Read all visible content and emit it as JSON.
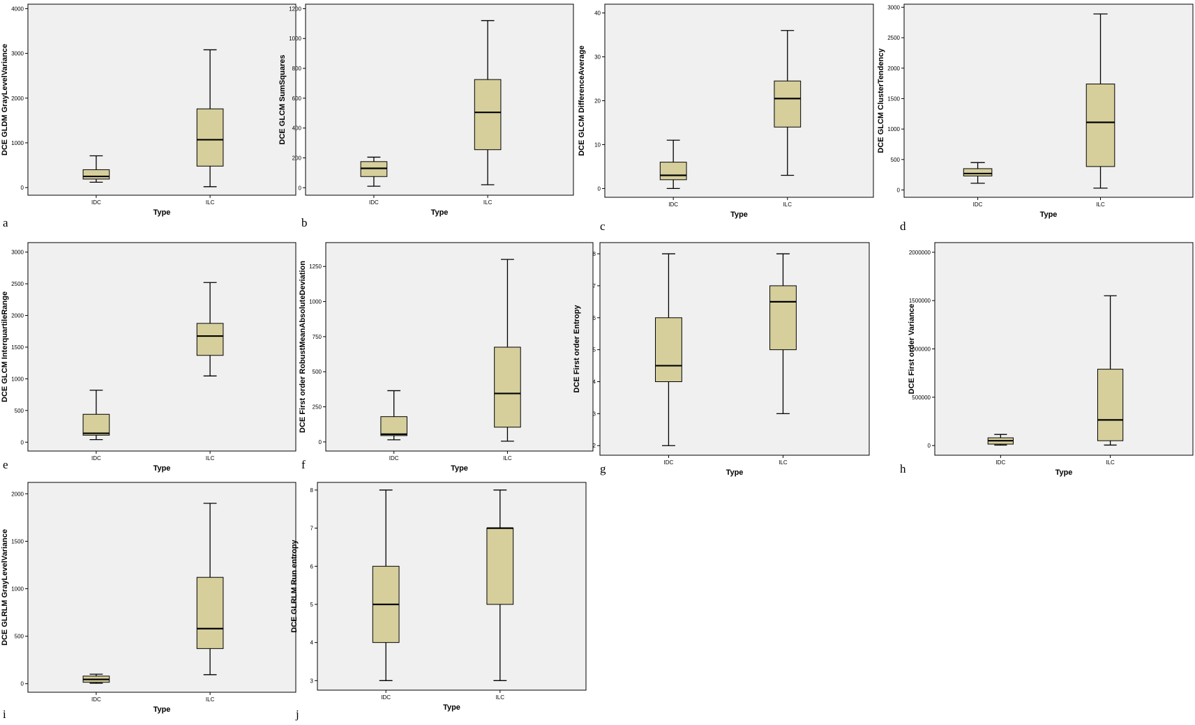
{
  "figure": {
    "colors": {
      "plot_bg": "#f0f0f0",
      "box_fill": "#d6cf9c",
      "stroke": "#000000"
    }
  },
  "chart_data": [
    {
      "type": "boxplot",
      "panel": "a",
      "xlabel": "Type",
      "ylabel": "DCE GLDM GrayLevelVariance",
      "ylim": [
        -170,
        4100
      ],
      "yticks": [
        0,
        1000,
        2000,
        3000,
        4000
      ],
      "categories": [
        "IDC",
        "ILC"
      ],
      "boxes": [
        {
          "category": "IDC",
          "min": 120,
          "q1": 190,
          "median": 250,
          "q3": 400,
          "max": 710
        },
        {
          "category": "ILC",
          "min": 20,
          "q1": 480,
          "median": 1070,
          "q3": 1760,
          "max": 3080
        }
      ]
    },
    {
      "type": "boxplot",
      "panel": "b",
      "xlabel": "Type",
      "ylabel": "DCE GLCM SumSquares",
      "ylim": [
        -50,
        1230
      ],
      "yticks": [
        0,
        200,
        400,
        600,
        800,
        1000,
        1200
      ],
      "categories": [
        "IDC",
        "ILC"
      ],
      "boxes": [
        {
          "category": "IDC",
          "min": 10,
          "q1": 75,
          "median": 130,
          "q3": 175,
          "max": 205
        },
        {
          "category": "ILC",
          "min": 20,
          "q1": 255,
          "median": 505,
          "q3": 725,
          "max": 1120
        }
      ]
    },
    {
      "type": "boxplot",
      "panel": "c",
      "xlabel": "Type",
      "ylabel": "DCE GLCM DifferenceAverage",
      "ylim": [
        -2,
        42
      ],
      "yticks": [
        0,
        10,
        20,
        30,
        40
      ],
      "categories": [
        "IDC",
        "ILC"
      ],
      "boxes": [
        {
          "category": "IDC",
          "min": 0,
          "q1": 2,
          "median": 3,
          "q3": 6,
          "max": 11
        },
        {
          "category": "ILC",
          "min": 3,
          "q1": 14,
          "median": 20.5,
          "q3": 24.5,
          "max": 36
        }
      ]
    },
    {
      "type": "boxplot",
      "panel": "d",
      "xlabel": "Type",
      "ylabel": "DCE GLCM ClusterTendency",
      "ylim": [
        -120,
        3050
      ],
      "yticks": [
        0,
        500,
        1000,
        1500,
        2000,
        2500,
        3000
      ],
      "categories": [
        "IDC",
        "ILC"
      ],
      "boxes": [
        {
          "category": "IDC",
          "min": 110,
          "q1": 230,
          "median": 270,
          "q3": 350,
          "max": 450
        },
        {
          "category": "ILC",
          "min": 30,
          "q1": 385,
          "median": 1110,
          "q3": 1740,
          "max": 2890
        }
      ]
    },
    {
      "type": "boxplot",
      "panel": "e",
      "xlabel": "Type",
      "ylabel": "DCE GLCM InterquartileRange",
      "ylim": [
        -140,
        3150
      ],
      "yticks": [
        0,
        500,
        1000,
        1500,
        2000,
        2500,
        3000
      ],
      "categories": [
        "IDC",
        "ILC"
      ],
      "boxes": [
        {
          "category": "IDC",
          "min": 40,
          "q1": 110,
          "median": 140,
          "q3": 440,
          "max": 820
        },
        {
          "category": "ILC",
          "min": 1045,
          "q1": 1370,
          "median": 1675,
          "q3": 1875,
          "max": 2520
        }
      ]
    },
    {
      "type": "boxplot",
      "panel": "f",
      "xlabel": "Type",
      "ylabel": "DCE First order RobustMeanAbsoluteDeviation",
      "ylim": [
        -65,
        1420
      ],
      "yticks": [
        0,
        250,
        500,
        750,
        1000,
        1250
      ],
      "categories": [
        "IDC",
        "ILC"
      ],
      "boxes": [
        {
          "category": "IDC",
          "min": 15,
          "q1": 45,
          "median": 55,
          "q3": 180,
          "max": 365
        },
        {
          "category": "ILC",
          "min": 5,
          "q1": 105,
          "median": 345,
          "q3": 675,
          "max": 1300
        }
      ]
    },
    {
      "type": "boxplot",
      "panel": "g",
      "xlabel": "Type",
      "ylabel": "DCE First order Entropy",
      "ylim": [
        1.7,
        8.35
      ],
      "yticks": [
        2,
        3,
        4,
        5,
        6,
        7,
        8
      ],
      "categories": [
        "IDC",
        "ILC"
      ],
      "boxes": [
        {
          "category": "IDC",
          "min": 2,
          "q1": 4,
          "median": 4.5,
          "q3": 6,
          "max": 8
        },
        {
          "category": "ILC",
          "min": 3,
          "q1": 5,
          "median": 6.5,
          "q3": 7,
          "max": 8
        }
      ]
    },
    {
      "type": "boxplot",
      "panel": "h",
      "xlabel": "Type",
      "ylabel": "DCE First order Variance",
      "ylim": [
        -100000,
        2100000
      ],
      "yticks": [
        0,
        500000,
        1000000,
        1500000,
        2000000
      ],
      "categories": [
        "IDC",
        "ILC"
      ],
      "boxes": [
        {
          "category": "IDC",
          "min": 5000,
          "q1": 15000,
          "median": 50000,
          "q3": 80000,
          "max": 115000
        },
        {
          "category": "ILC",
          "min": 5000,
          "q1": 50000,
          "median": 265000,
          "q3": 790000,
          "max": 1550000
        }
      ]
    },
    {
      "type": "boxplot",
      "panel": "i",
      "xlabel": "Type",
      "ylabel": "DCE GLRLM GrayLevelVariance",
      "ylim": [
        -90,
        2120
      ],
      "yticks": [
        0,
        500,
        1000,
        1500,
        2000
      ],
      "categories": [
        "IDC",
        "ILC"
      ],
      "boxes": [
        {
          "category": "IDC",
          "min": 5,
          "q1": 15,
          "median": 45,
          "q3": 80,
          "max": 100
        },
        {
          "category": "ILC",
          "min": 95,
          "q1": 370,
          "median": 580,
          "q3": 1120,
          "max": 1900
        }
      ]
    },
    {
      "type": "boxplot",
      "panel": "j",
      "xlabel": "Type",
      "ylabel": "DCE GLRLM Run entropy",
      "ylim": [
        2.75,
        8.2
      ],
      "yticks": [
        3,
        4,
        5,
        6,
        7,
        8
      ],
      "categories": [
        "IDC",
        "ILC"
      ],
      "boxes": [
        {
          "category": "IDC",
          "min": 3,
          "q1": 4,
          "median": 5,
          "q3": 6,
          "max": 8
        },
        {
          "category": "ILC",
          "min": 3,
          "q1": 5,
          "median": 7,
          "q3": 7,
          "max": 8
        }
      ]
    }
  ]
}
